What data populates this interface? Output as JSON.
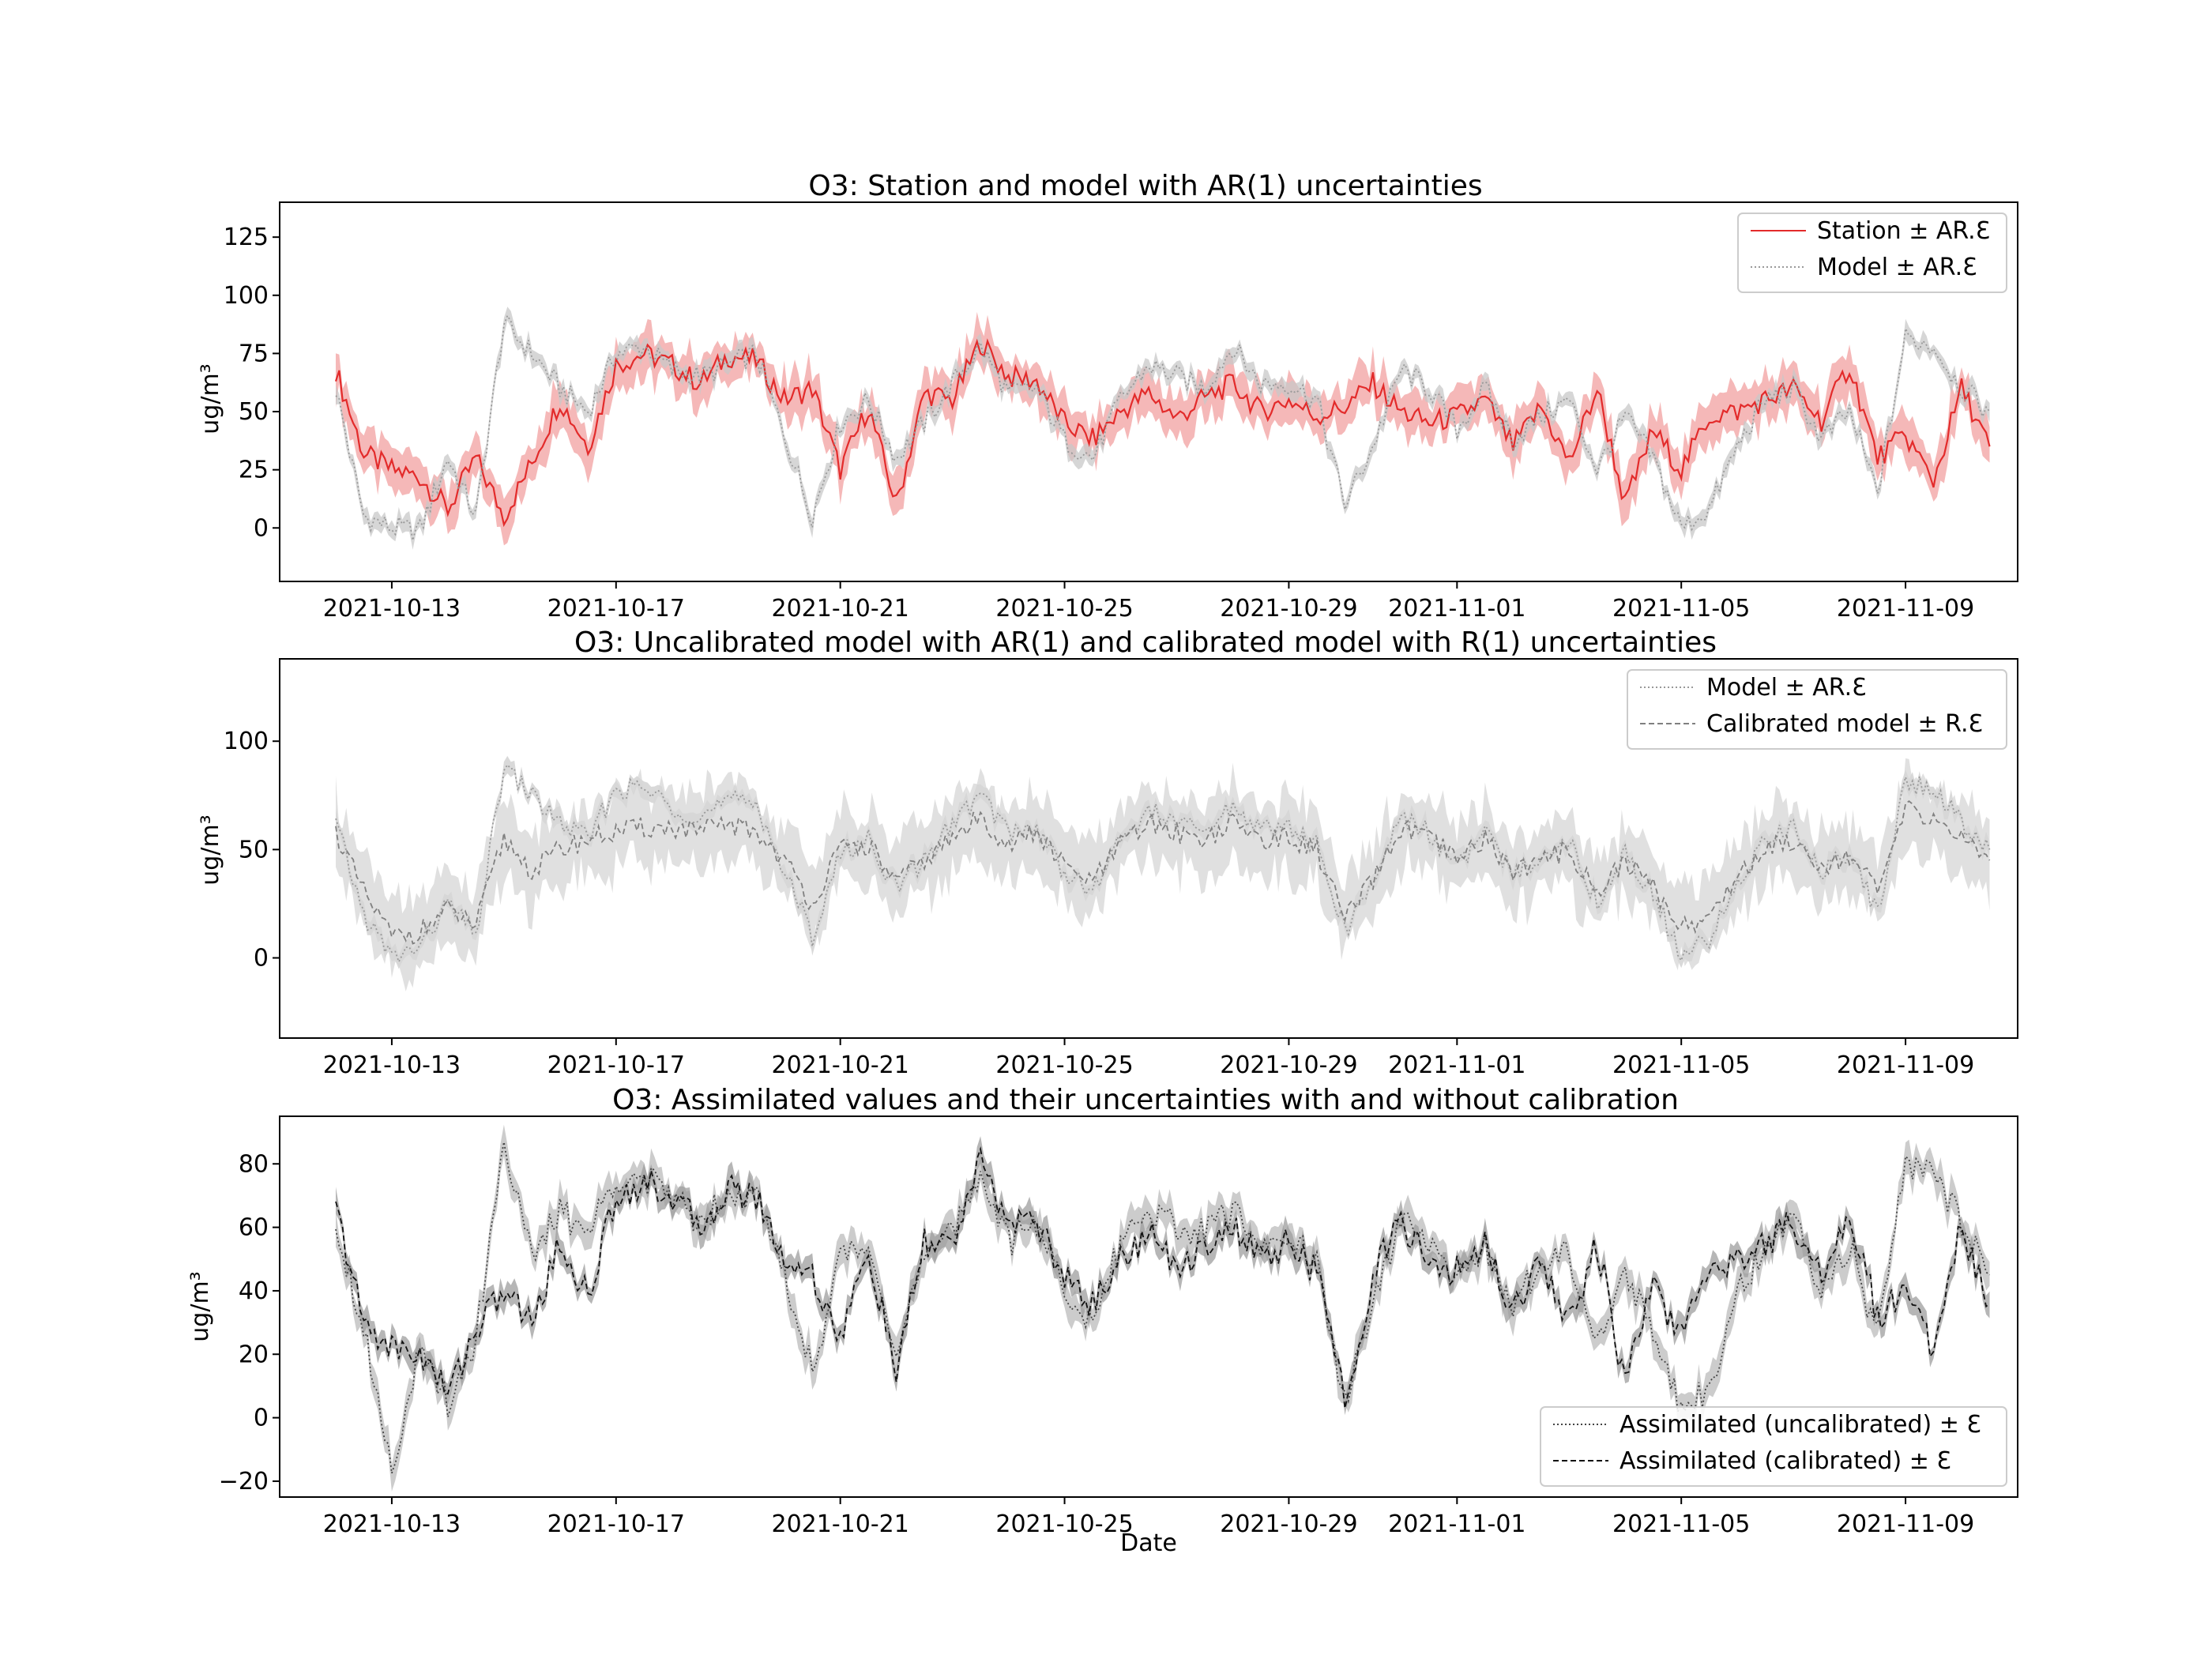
{
  "figure": {
    "xlabel": "Date"
  },
  "chart_data": [
    {
      "type": "line",
      "title": "O3: Station and model with AR(1) uncertainties",
      "xlabel": "",
      "ylabel": "ug/m³",
      "xlim": [
        "2021-10-11",
        "2021-11-11"
      ],
      "ylim": [
        -23,
        140
      ],
      "yticks": [
        0,
        25,
        50,
        75,
        100,
        125
      ],
      "xtick_labels": [
        "2021-10-13",
        "2021-10-17",
        "2021-10-21",
        "2021-10-25",
        "2021-10-29",
        "2021-11-01",
        "2021-11-05",
        "2021-11-09"
      ],
      "grid": false,
      "legend_position": "top-right",
      "series": [
        {
          "name": "Station ± AR.Ɛ",
          "color": "#e32b2b",
          "band_color": "#f2a0a0",
          "style": "solid",
          "x": [
            "2021-10-12",
            "2021-10-12.5",
            "2021-10-13",
            "2021-10-13.5",
            "2021-10-14",
            "2021-10-14.5",
            "2021-10-15",
            "2021-10-15.5",
            "2021-10-16",
            "2021-10-16.5",
            "2021-10-17",
            "2021-10-17.5",
            "2021-10-18",
            "2021-10-18.5",
            "2021-10-19",
            "2021-10-19.5",
            "2021-10-20",
            "2021-10-20.5",
            "2021-10-21",
            "2021-10-21.5",
            "2021-10-22",
            "2021-10-22.5",
            "2021-10-23",
            "2021-10-23.5",
            "2021-10-24",
            "2021-10-24.5",
            "2021-10-25",
            "2021-10-25.5",
            "2021-10-26",
            "2021-10-26.5",
            "2021-10-27",
            "2021-10-27.5",
            "2021-10-28",
            "2021-10-28.5",
            "2021-10-29",
            "2021-10-29.5",
            "2021-10-30",
            "2021-10-30.5",
            "2021-10-31",
            "2021-10-31.5",
            "2021-11-01",
            "2021-11-01.5",
            "2021-11-02",
            "2021-11-02.5",
            "2021-11-03",
            "2021-11-03.5",
            "2021-11-04",
            "2021-11-04.5",
            "2021-11-05",
            "2021-11-05.5",
            "2021-11-06",
            "2021-11-06.5",
            "2021-11-07",
            "2021-11-07.5",
            "2021-11-08",
            "2021-11-08.5",
            "2021-11-09",
            "2021-11-09.5",
            "2021-11-10",
            "2021-11-10.5"
          ],
          "values": [
            68,
            32,
            25,
            22,
            8,
            30,
            5,
            28,
            55,
            35,
            70,
            75,
            70,
            62,
            74,
            72,
            55,
            60,
            25,
            52,
            10,
            58,
            55,
            80,
            65,
            63,
            45,
            38,
            50,
            58,
            47,
            56,
            62,
            50,
            55,
            48,
            52,
            62,
            50,
            45,
            48,
            55,
            35,
            52,
            28,
            60,
            10,
            42,
            25,
            48,
            50,
            55,
            60,
            46,
            70,
            30,
            40,
            20,
            60,
            35
          ],
          "band": 8
        },
        {
          "name": "Model ± AR.Ɛ",
          "color": "#999999",
          "band_color": "#c8c8c8",
          "style": "dotted",
          "x": [
            "2021-10-12",
            "2021-10-12.5",
            "2021-10-13",
            "2021-10-13.5",
            "2021-10-14",
            "2021-10-14.5",
            "2021-10-15",
            "2021-10-15.5",
            "2021-10-16",
            "2021-10-16.5",
            "2021-10-17",
            "2021-10-17.5",
            "2021-10-18",
            "2021-10-18.5",
            "2021-10-19",
            "2021-10-19.5",
            "2021-10-20",
            "2021-10-20.5",
            "2021-10-21",
            "2021-10-21.5",
            "2021-10-22",
            "2021-10-22.5",
            "2021-10-23",
            "2021-10-23.5",
            "2021-10-24",
            "2021-10-24.5",
            "2021-10-25",
            "2021-10-25.5",
            "2021-10-26",
            "2021-10-26.5",
            "2021-10-27",
            "2021-10-27.5",
            "2021-10-28",
            "2021-10-28.5",
            "2021-10-29",
            "2021-10-29.5",
            "2021-10-30",
            "2021-10-30.5",
            "2021-10-31",
            "2021-10-31.5",
            "2021-11-01",
            "2021-11-01.5",
            "2021-11-02",
            "2021-11-02.5",
            "2021-11-03",
            "2021-11-03.5",
            "2021-11-04",
            "2021-11-04.5",
            "2021-11-05",
            "2021-11-05.5",
            "2021-11-06",
            "2021-11-06.5",
            "2021-11-07",
            "2021-11-07.5",
            "2021-11-08",
            "2021-11-08.5",
            "2021-11-09",
            "2021-11-09.5",
            "2021-11-10",
            "2021-11-10.5"
          ],
          "values": [
            60,
            5,
            0,
            -1,
            30,
            5,
            88,
            75,
            60,
            50,
            75,
            78,
            68,
            65,
            70,
            75,
            40,
            5,
            45,
            55,
            30,
            45,
            62,
            78,
            58,
            60,
            38,
            30,
            55,
            70,
            65,
            60,
            78,
            62,
            62,
            55,
            10,
            35,
            68,
            60,
            42,
            60,
            38,
            48,
            55,
            25,
            48,
            30,
            0,
            8,
            35,
            55,
            60,
            38,
            50,
            15,
            82,
            78,
            60,
            50
          ],
          "band": 3
        }
      ]
    },
    {
      "type": "line",
      "title": "O3: Uncalibrated model with AR(1) and calibrated model with R(1) uncertainties",
      "xlabel": "",
      "ylabel": "ug/m³",
      "xlim": [
        "2021-10-11",
        "2021-11-11"
      ],
      "ylim": [
        -37,
        138
      ],
      "yticks": [
        0,
        50,
        100
      ],
      "xtick_labels": [
        "2021-10-13",
        "2021-10-17",
        "2021-10-21",
        "2021-10-25",
        "2021-10-29",
        "2021-11-01",
        "2021-11-05",
        "2021-11-09"
      ],
      "grid": false,
      "legend_position": "top-right",
      "series": [
        {
          "name": "Model ± AR.Ɛ",
          "color": "#999999",
          "band_color": "#cccccc",
          "style": "dotted",
          "x": [
            "2021-10-12",
            "2021-10-12.5",
            "2021-10-13",
            "2021-10-13.5",
            "2021-10-14",
            "2021-10-14.5",
            "2021-10-15",
            "2021-10-15.5",
            "2021-10-16",
            "2021-10-16.5",
            "2021-10-17",
            "2021-10-17.5",
            "2021-10-18",
            "2021-10-18.5",
            "2021-10-19",
            "2021-10-19.5",
            "2021-10-20",
            "2021-10-20.5",
            "2021-10-21",
            "2021-10-21.5",
            "2021-10-22",
            "2021-10-22.5",
            "2021-10-23",
            "2021-10-23.5",
            "2021-10-24",
            "2021-10-24.5",
            "2021-10-25",
            "2021-10-25.5",
            "2021-10-26",
            "2021-10-26.5",
            "2021-10-27",
            "2021-10-27.5",
            "2021-10-28",
            "2021-10-28.5",
            "2021-10-29",
            "2021-10-29.5",
            "2021-10-30",
            "2021-10-30.5",
            "2021-10-31",
            "2021-10-31.5",
            "2021-11-01",
            "2021-11-01.5",
            "2021-11-02",
            "2021-11-02.5",
            "2021-11-03",
            "2021-11-03.5",
            "2021-11-04",
            "2021-11-04.5",
            "2021-11-05",
            "2021-11-05.5",
            "2021-11-06",
            "2021-11-06.5",
            "2021-11-07",
            "2021-11-07.5",
            "2021-11-08",
            "2021-11-08.5",
            "2021-11-09",
            "2021-11-09.5",
            "2021-11-10",
            "2021-11-10.5"
          ],
          "values": [
            62,
            20,
            0,
            5,
            25,
            10,
            88,
            75,
            62,
            55,
            78,
            78,
            70,
            65,
            72,
            72,
            40,
            10,
            48,
            55,
            32,
            45,
            62,
            75,
            58,
            60,
            40,
            30,
            55,
            68,
            62,
            58,
            70,
            60,
            60,
            52,
            12,
            35,
            66,
            58,
            42,
            58,
            38,
            48,
            55,
            25,
            48,
            30,
            0,
            8,
            35,
            55,
            60,
            40,
            50,
            20,
            82,
            78,
            62,
            50
          ],
          "band": 3
        },
        {
          "name": "Calibrated model ± R.Ɛ",
          "color": "#808080",
          "band_color": "#d6d6d6",
          "style": "dashed",
          "x": [
            "2021-10-12",
            "2021-10-12.5",
            "2021-10-13",
            "2021-10-13.5",
            "2021-10-14",
            "2021-10-14.5",
            "2021-10-15",
            "2021-10-15.5",
            "2021-10-16",
            "2021-10-16.5",
            "2021-10-17",
            "2021-10-17.5",
            "2021-10-18",
            "2021-10-18.5",
            "2021-10-19",
            "2021-10-19.5",
            "2021-10-20",
            "2021-10-20.5",
            "2021-10-21",
            "2021-10-21.5",
            "2021-10-22",
            "2021-10-22.5",
            "2021-10-23",
            "2021-10-23.5",
            "2021-10-24",
            "2021-10-24.5",
            "2021-10-25",
            "2021-10-25.5",
            "2021-10-26",
            "2021-10-26.5",
            "2021-10-27",
            "2021-10-27.5",
            "2021-10-28",
            "2021-10-28.5",
            "2021-10-29",
            "2021-10-29.5",
            "2021-10-30",
            "2021-10-30.5",
            "2021-10-31",
            "2021-10-31.5",
            "2021-11-01",
            "2021-11-01.5",
            "2021-11-02",
            "2021-11-02.5",
            "2021-11-03",
            "2021-11-03.5",
            "2021-11-04",
            "2021-11-04.5",
            "2021-11-05",
            "2021-11-05.5",
            "2021-11-06",
            "2021-11-06.5",
            "2021-11-07",
            "2021-11-07.5",
            "2021-11-08",
            "2021-11-08.5",
            "2021-11-09",
            "2021-11-09.5",
            "2021-11-10",
            "2021-11-10.5"
          ],
          "values": [
            58,
            30,
            10,
            12,
            22,
            15,
            55,
            40,
            50,
            55,
            58,
            60,
            60,
            58,
            62,
            58,
            45,
            25,
            50,
            52,
            35,
            45,
            55,
            65,
            52,
            58,
            42,
            35,
            52,
            62,
            58,
            55,
            62,
            55,
            55,
            50,
            18,
            35,
            60,
            55,
            45,
            55,
            40,
            45,
            50,
            30,
            45,
            32,
            15,
            18,
            38,
            50,
            55,
            42,
            48,
            30,
            68,
            65,
            55,
            45
          ],
          "band": 15
        }
      ]
    },
    {
      "type": "line",
      "title": "O3: Assimilated values and their uncertainties with and without calibration",
      "xlabel": "Date",
      "ylabel": "ug/m³",
      "xlim": [
        "2021-10-11",
        "2021-11-11"
      ],
      "ylim": [
        -25,
        95
      ],
      "yticks": [
        -20,
        0,
        20,
        40,
        60,
        80
      ],
      "xtick_labels": [
        "2021-10-13",
        "2021-10-17",
        "2021-10-21",
        "2021-10-25",
        "2021-10-29",
        "2021-11-01",
        "2021-11-05",
        "2021-11-09"
      ],
      "grid": false,
      "legend_position": "bottom-right",
      "series": [
        {
          "name": "Assimilated (uncalibrated) ± Ɛ",
          "color": "#444444",
          "band_color": "#bbbbbb",
          "style": "dotted",
          "x": [
            "2021-10-12",
            "2021-10-12.5",
            "2021-10-13",
            "2021-10-13.5",
            "2021-10-14",
            "2021-10-14.5",
            "2021-10-15",
            "2021-10-15.5",
            "2021-10-16",
            "2021-10-16.5",
            "2021-10-17",
            "2021-10-17.5",
            "2021-10-18",
            "2021-10-18.5",
            "2021-10-19",
            "2021-10-19.5",
            "2021-10-20",
            "2021-10-20.5",
            "2021-10-21",
            "2021-10-21.5",
            "2021-10-22",
            "2021-10-22.5",
            "2021-10-23",
            "2021-10-23.5",
            "2021-10-24",
            "2021-10-24.5",
            "2021-10-25",
            "2021-10-25.5",
            "2021-10-26",
            "2021-10-26.5",
            "2021-10-27",
            "2021-10-27.5",
            "2021-10-28",
            "2021-10-28.5",
            "2021-10-29",
            "2021-10-29.5",
            "2021-10-30",
            "2021-10-30.5",
            "2021-10-31",
            "2021-10-31.5",
            "2021-11-01",
            "2021-11-01.5",
            "2021-11-02",
            "2021-11-02.5",
            "2021-11-03",
            "2021-11-03.5",
            "2021-11-04",
            "2021-11-04.5",
            "2021-11-05",
            "2021-11-05.5",
            "2021-11-06",
            "2021-11-06.5",
            "2021-11-07",
            "2021-11-07.5",
            "2021-11-08",
            "2021-11-08.5",
            "2021-11-09",
            "2021-11-09.5",
            "2021-11-10",
            "2021-11-10.5"
          ],
          "values": [
            62,
            28,
            -15,
            20,
            5,
            25,
            88,
            50,
            65,
            58,
            76,
            75,
            70,
            62,
            72,
            70,
            45,
            15,
            50,
            55,
            22,
            50,
            58,
            78,
            55,
            62,
            40,
            30,
            55,
            66,
            60,
            58,
            65,
            55,
            58,
            48,
            5,
            35,
            62,
            55,
            42,
            55,
            35,
            48,
            52,
            25,
            45,
            28,
            3,
            10,
            40,
            52,
            62,
            40,
            55,
            25,
            80,
            75,
            62,
            45
          ],
          "band": 4
        },
        {
          "name": "Assimilated (calibrated) ± Ɛ",
          "color": "#111111",
          "band_color": "#9e9e9e",
          "style": "dashed",
          "x": [
            "2021-10-12",
            "2021-10-12.5",
            "2021-10-13",
            "2021-10-13.5",
            "2021-10-14",
            "2021-10-14.5",
            "2021-10-15",
            "2021-10-15.5",
            "2021-10-16",
            "2021-10-16.5",
            "2021-10-17",
            "2021-10-17.5",
            "2021-10-18",
            "2021-10-18.5",
            "2021-10-19",
            "2021-10-19.5",
            "2021-10-20",
            "2021-10-20.5",
            "2021-10-21",
            "2021-10-21.5",
            "2021-10-22",
            "2021-10-22.5",
            "2021-10-23",
            "2021-10-23.5",
            "2021-10-24",
            "2021-10-24.5",
            "2021-10-25",
            "2021-10-25.5",
            "2021-10-26",
            "2021-10-26.5",
            "2021-10-27",
            "2021-10-27.5",
            "2021-10-28",
            "2021-10-28.5",
            "2021-10-29",
            "2021-10-29.5",
            "2021-10-30",
            "2021-10-30.5",
            "2021-10-31",
            "2021-10-31.5",
            "2021-11-01",
            "2021-11-01.5",
            "2021-11-02",
            "2021-11-02.5",
            "2021-11-03",
            "2021-11-03.5",
            "2021-11-04",
            "2021-11-04.5",
            "2021-11-05",
            "2021-11-05.5",
            "2021-11-06",
            "2021-11-06.5",
            "2021-11-07",
            "2021-11-07.5",
            "2021-11-08",
            "2021-11-08.5",
            "2021-11-09",
            "2021-11-09.5",
            "2021-11-10",
            "2021-11-10.5"
          ],
          "values": [
            66,
            30,
            22,
            20,
            8,
            28,
            40,
            30,
            55,
            38,
            70,
            74,
            70,
            60,
            72,
            70,
            50,
            45,
            25,
            52,
            14,
            55,
            55,
            80,
            62,
            62,
            44,
            36,
            50,
            58,
            47,
            55,
            60,
            50,
            55,
            46,
            5,
            45,
            62,
            48,
            46,
            55,
            34,
            50,
            30,
            55,
            10,
            42,
            25,
            48,
            50,
            55,
            62,
            45,
            65,
            32,
            40,
            22,
            60,
            36
          ],
          "band": 3
        }
      ]
    }
  ]
}
